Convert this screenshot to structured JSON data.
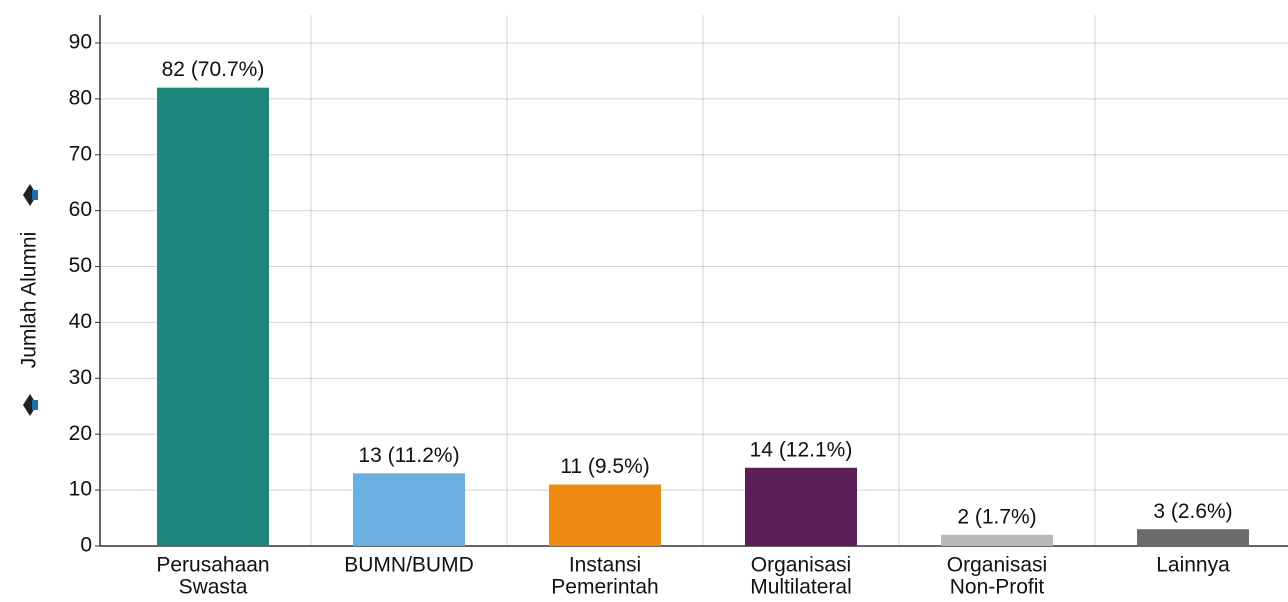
{
  "chart_data": {
    "type": "bar",
    "y_label": "Jumlah Alumni",
    "categories": [
      [
        "Perusahaan",
        "Swasta"
      ],
      [
        "BUMN/BUMD"
      ],
      [
        "Instansi",
        "Pemerintah"
      ],
      [
        "Organisasi",
        "Multilateral"
      ],
      [
        "Organisasi",
        "Non-Profit"
      ],
      [
        "Lainnya"
      ]
    ],
    "values": [
      82,
      13,
      11,
      14,
      2,
      3
    ],
    "value_labels": [
      "82 (70.7%)",
      "13 (11.2%)",
      "11 (9.5%)",
      "14 (12.1%)",
      "2 (1.7%)",
      "3 (2.6%)"
    ],
    "colors": [
      "#1e877c",
      "#6aafe0",
      "#ef8b12",
      "#5a1e59",
      "#b9b9b9",
      "#6b6b6b"
    ],
    "ylim": [
      0,
      95
    ],
    "yticks": [
      0,
      10,
      20,
      30,
      40,
      50,
      60,
      70,
      80,
      90
    ],
    "grid": true
  }
}
